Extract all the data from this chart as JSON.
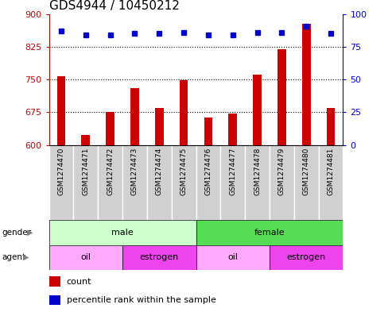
{
  "title": "GDS4944 / 10450212",
  "samples": [
    "GSM1274470",
    "GSM1274471",
    "GSM1274472",
    "GSM1274473",
    "GSM1274474",
    "GSM1274475",
    "GSM1274476",
    "GSM1274477",
    "GSM1274478",
    "GSM1274479",
    "GSM1274480",
    "GSM1274481"
  ],
  "counts": [
    758,
    623,
    676,
    730,
    685,
    748,
    663,
    672,
    762,
    820,
    878,
    685
  ],
  "percentile_ranks": [
    87,
    84,
    84,
    85,
    85,
    86,
    84,
    84,
    86,
    86,
    91,
    85
  ],
  "ylim_left": [
    600,
    900
  ],
  "ylim_right": [
    0,
    100
  ],
  "yticks_left": [
    600,
    675,
    750,
    825,
    900
  ],
  "yticks_right": [
    0,
    25,
    50,
    75,
    100
  ],
  "gender_groups": [
    {
      "label": "male",
      "start": 0,
      "end": 6,
      "color": "#ccffcc"
    },
    {
      "label": "female",
      "start": 6,
      "end": 12,
      "color": "#55dd55"
    }
  ],
  "agent_groups": [
    {
      "label": "oil",
      "start": 0,
      "end": 3,
      "color": "#ffaaff"
    },
    {
      "label": "estrogen",
      "start": 3,
      "end": 6,
      "color": "#ee44ee"
    },
    {
      "label": "oil",
      "start": 6,
      "end": 9,
      "color": "#ffaaff"
    },
    {
      "label": "estrogen",
      "start": 9,
      "end": 12,
      "color": "#ee44ee"
    }
  ],
  "bar_color": "#cc0000",
  "dot_color": "#0000cc",
  "tick_bg_color": "#d0d0d0",
  "main_bg_color": "#ffffff",
  "bar_width": 0.35,
  "dot_size": 4.5,
  "gridline_ticks": [
    675,
    750,
    825
  ],
  "left_axis_color": "#cc0000",
  "right_axis_color": "#0000cc",
  "title_fontsize": 11,
  "tick_fontsize": 6.5,
  "strip_fontsize": 8,
  "legend_fontsize": 8
}
